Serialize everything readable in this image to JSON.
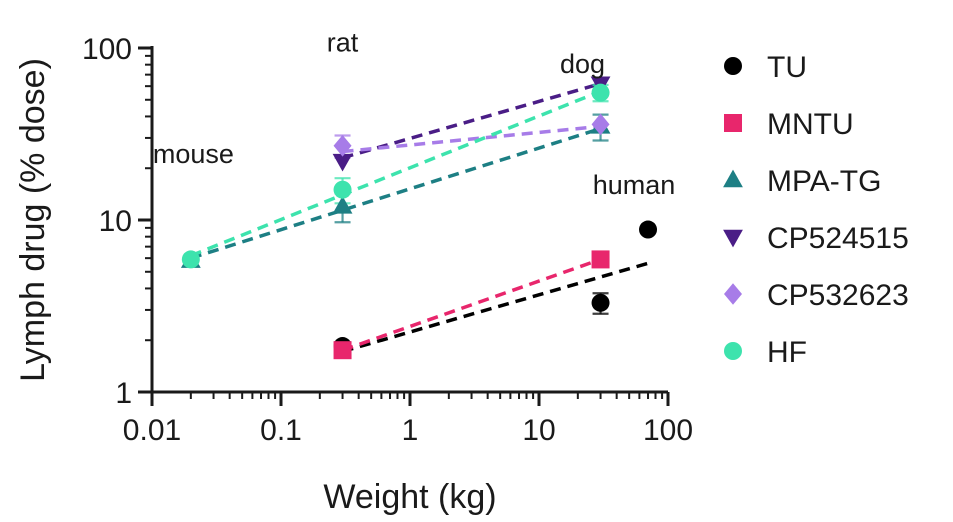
{
  "chart_data": {
    "type": "scatter",
    "xscale": "log",
    "yscale": "log",
    "xlabel": "Weight (kg)",
    "ylabel": "Lymph drug (% dose)",
    "xlim": [
      0.01,
      100
    ],
    "ylim": [
      1,
      100
    ],
    "xticks": [
      {
        "value": 0.01,
        "label": "0.01"
      },
      {
        "value": 0.1,
        "label": "0.1"
      },
      {
        "value": 1,
        "label": "1"
      },
      {
        "value": 10,
        "label": "10"
      },
      {
        "value": 100,
        "label": "100"
      }
    ],
    "yticks": [
      {
        "value": 1,
        "label": "1"
      },
      {
        "value": 10,
        "label": "10"
      },
      {
        "value": 100,
        "label": "100"
      }
    ],
    "legend_position": "right",
    "annotations": [
      {
        "text": "mouse",
        "x": 0.02,
        "y": 6.0
      },
      {
        "text": "rat",
        "x": 0.3,
        "y": 26
      },
      {
        "text": "dog",
        "x": 30,
        "y": 60
      },
      {
        "text": "human",
        "x": 70,
        "y": 9
      }
    ],
    "series": [
      {
        "name": "TU",
        "color": "#000000",
        "marker": "circle",
        "points": [
          {
            "x": 0.3,
            "y": 1.85,
            "err": 0.1
          },
          {
            "x": 30,
            "y": 3.3,
            "err": 0.45
          },
          {
            "x": 70,
            "y": 8.8,
            "err": 0
          }
        ],
        "fit": {
          "x": [
            0.3,
            70
          ],
          "y": [
            1.72,
            5.6
          ]
        }
      },
      {
        "name": "MNTU",
        "color": "#e8266c",
        "marker": "square",
        "points": [
          {
            "x": 0.3,
            "y": 1.75,
            "err": 0
          },
          {
            "x": 30,
            "y": 5.9,
            "err": 0
          }
        ],
        "fit": {
          "x": [
            0.3,
            30
          ],
          "y": [
            1.75,
            5.9
          ]
        }
      },
      {
        "name": "MPA-TG",
        "color": "#1d7f84",
        "marker": "triangle-up",
        "points": [
          {
            "x": 0.02,
            "y": 5.8,
            "err": 0
          },
          {
            "x": 0.3,
            "y": 12,
            "err": 2.3
          },
          {
            "x": 30,
            "y": 35,
            "err": 6
          }
        ],
        "fit": {
          "x": [
            0.02,
            30
          ],
          "y": [
            6.0,
            34
          ]
        }
      },
      {
        "name": "CP524515",
        "color": "#4a1d86",
        "marker": "triangle-down",
        "points": [
          {
            "x": 0.3,
            "y": 22,
            "err": 0
          },
          {
            "x": 30,
            "y": 62,
            "err": 0
          }
        ],
        "fit": {
          "x": [
            0.3,
            30
          ],
          "y": [
            23,
            62
          ]
        }
      },
      {
        "name": "CP532623",
        "color": "#a77ce8",
        "marker": "diamond",
        "points": [
          {
            "x": 0.3,
            "y": 27,
            "err": 4
          },
          {
            "x": 30,
            "y": 36,
            "err": 0
          }
        ],
        "fit": {
          "x": [
            0.3,
            30
          ],
          "y": [
            25,
            35
          ]
        }
      },
      {
        "name": "HF",
        "color": "#3de3ad",
        "marker": "circle",
        "points": [
          {
            "x": 0.02,
            "y": 5.9,
            "err": 0
          },
          {
            "x": 0.3,
            "y": 15,
            "err": 2.5
          },
          {
            "x": 30,
            "y": 55,
            "err": 6
          }
        ],
        "fit": {
          "x": [
            0.02,
            30
          ],
          "y": [
            6.2,
            56
          ]
        }
      }
    ]
  }
}
